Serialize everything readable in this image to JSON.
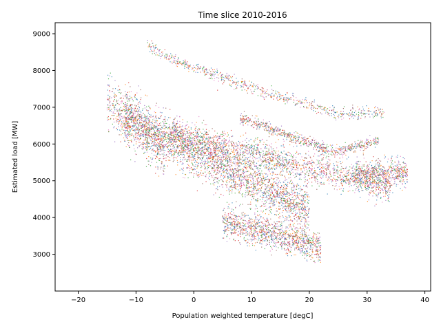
{
  "chart_data": {
    "type": "scatter",
    "title": "Time slice 2010-2016",
    "xlabel": "Population weighted temperature [degC]",
    "ylabel": "Estimated load [MW]",
    "xlim": [
      -24,
      41
    ],
    "ylim": [
      2000,
      9300
    ],
    "xticks": [
      -20,
      -10,
      0,
      10,
      20,
      30,
      40
    ],
    "yticks": [
      3000,
      4000,
      5000,
      6000,
      7000,
      8000,
      9000
    ],
    "xtick_labels": [
      "−20",
      "−10",
      "0",
      "10",
      "20",
      "30",
      "40"
    ],
    "ytick_labels": [
      "3000",
      "4000",
      "5000",
      "6000",
      "7000",
      "8000",
      "9000"
    ],
    "grid": false,
    "legend": "none",
    "series_colors": [
      "#1f77b4",
      "#ff7f0e",
      "#2ca02c",
      "#d62728",
      "#9467bd",
      "#8c564b",
      "#e377c2"
    ],
    "clusters": [
      {
        "x_range": [
          -12,
          20
        ],
        "y_start": 6700,
        "y_end": 4200,
        "y_spread": 700,
        "density": 0.34
      },
      {
        "x_range": [
          -4,
          34
        ],
        "y_start": 6300,
        "y_end": 4800,
        "y_spread": 450,
        "density": 0.22
      },
      {
        "x_range": [
          5,
          22
        ],
        "y_start": 3900,
        "y_end": 3200,
        "y_spread": 450,
        "density": 0.14
      },
      {
        "x_range": [
          -8,
          33
        ],
        "y_start": 8700,
        "y_end": 6600,
        "y_spread": 180,
        "density": 0.08,
        "curve": "upper"
      },
      {
        "x_range": [
          8,
          32
        ],
        "y_start": 6700,
        "y_end": 5900,
        "y_spread": 170,
        "density": 0.08,
        "curve": "mid"
      },
      {
        "x_range": [
          -15,
          -5
        ],
        "y_start": 7200,
        "y_end": 5800,
        "y_spread": 800,
        "density": 0.07
      },
      {
        "x_range": [
          28,
          37
        ],
        "y_start": 5200,
        "y_end": 5200,
        "y_spread": 400,
        "density": 0.07
      }
    ],
    "point_count": 9000
  }
}
